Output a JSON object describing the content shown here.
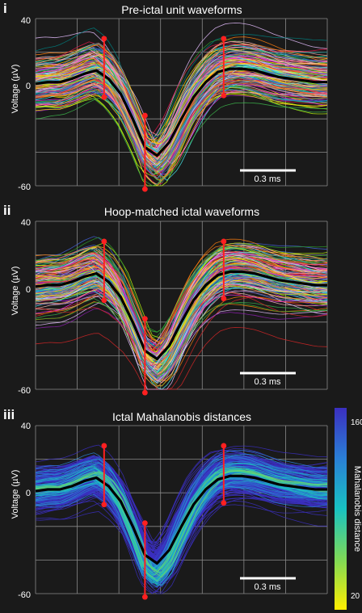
{
  "chart_data": [
    {
      "type": "line",
      "panel_label": "i",
      "title": "Pre-ictal unit waveforms",
      "ylabel": "Voltage (µV)",
      "ylim": [
        -60,
        40
      ],
      "y_ticks": [
        "40",
        "0",
        "-60"
      ],
      "grid": true,
      "scale_bar_label": "0.3 ms",
      "mean_waveform": [
        1,
        2,
        2,
        4,
        7,
        9,
        4,
        -5,
        -20,
        -37,
        -42,
        -34,
        -20,
        -7,
        2,
        8,
        10,
        10,
        9,
        7,
        5,
        4,
        3,
        2,
        2
      ],
      "markers": [
        {
          "name": "first peak",
          "low": -7,
          "high": 28
        },
        {
          "name": "trough",
          "low": -62,
          "high": -18
        },
        {
          "name": "second peak",
          "low": -6,
          "high": 28
        }
      ],
      "line_colors": [
        "#e6194b",
        "#3cb44b",
        "#ffe119",
        "#4363d8",
        "#f58231",
        "#911eb4",
        "#46f0f0",
        "#f032e6",
        "#bcf60c",
        "#fabebe",
        "#008080",
        "#e6beff",
        "#ff7f0e",
        "#17becf",
        "#d62728",
        "#2ca02c",
        "#9467bd",
        "#ff9896",
        "#1f77b4",
        "#ffd700"
      ]
    },
    {
      "type": "line",
      "panel_label": "ii",
      "title": "Hoop-matched ictal waveforms",
      "ylabel": "Voltage (µV)",
      "ylim": [
        -60,
        40
      ],
      "y_ticks": [
        "40",
        "0",
        "-60"
      ],
      "grid": true,
      "scale_bar_label": "0.3 ms",
      "mean_waveform": [
        1,
        2,
        2,
        4,
        7,
        9,
        4,
        -5,
        -20,
        -37,
        -42,
        -34,
        -20,
        -7,
        2,
        8,
        10,
        10,
        9,
        7,
        5,
        4,
        3,
        2,
        2
      ],
      "markers": [
        {
          "name": "first peak",
          "low": -7,
          "high": 28
        },
        {
          "name": "trough",
          "low": -62,
          "high": -18
        },
        {
          "name": "second peak",
          "low": -6,
          "high": 28
        }
      ],
      "line_colors": [
        "#e6194b",
        "#3cb44b",
        "#ffe119",
        "#4363d8",
        "#f58231",
        "#911eb4",
        "#46f0f0",
        "#f032e6",
        "#bcf60c",
        "#fabebe",
        "#008080",
        "#e6beff",
        "#ff7f0e",
        "#17becf",
        "#d62728",
        "#2ca02c",
        "#9467bd",
        "#ff9896",
        "#1f77b4",
        "#ffd700"
      ]
    },
    {
      "type": "line",
      "panel_label": "iii",
      "title": "Ictal Mahalanobis distances",
      "ylabel": "Voltage (µV)",
      "ylim": [
        -60,
        40
      ],
      "y_ticks": [
        "40",
        "0",
        "-60"
      ],
      "grid": true,
      "scale_bar_label": "0.3 ms",
      "mean_waveform": [
        1,
        2,
        2,
        4,
        7,
        9,
        4,
        -5,
        -20,
        -37,
        -42,
        -34,
        -20,
        -7,
        2,
        8,
        10,
        10,
        9,
        7,
        5,
        4,
        3,
        2,
        2
      ],
      "markers": [
        {
          "name": "first peak",
          "low": -7,
          "high": 28
        },
        {
          "name": "trough",
          "low": -62,
          "high": -18
        },
        {
          "name": "second peak",
          "low": -6,
          "high": 28
        }
      ],
      "colorbar": {
        "label": "Mahalanobis distance",
        "range": [
          20,
          160
        ],
        "ticks": [
          "160",
          "20"
        ],
        "colors": [
          "#3b2fc0",
          "#2a7fd6",
          "#18c2c2",
          "#7ed957",
          "#ffee00"
        ]
      }
    }
  ],
  "colors": {
    "background": "#1a1a1a",
    "grid": "#8a8a8a",
    "mean_line": "#000000",
    "marker": "#ff2020",
    "scale_bar": "#ffffff"
  }
}
